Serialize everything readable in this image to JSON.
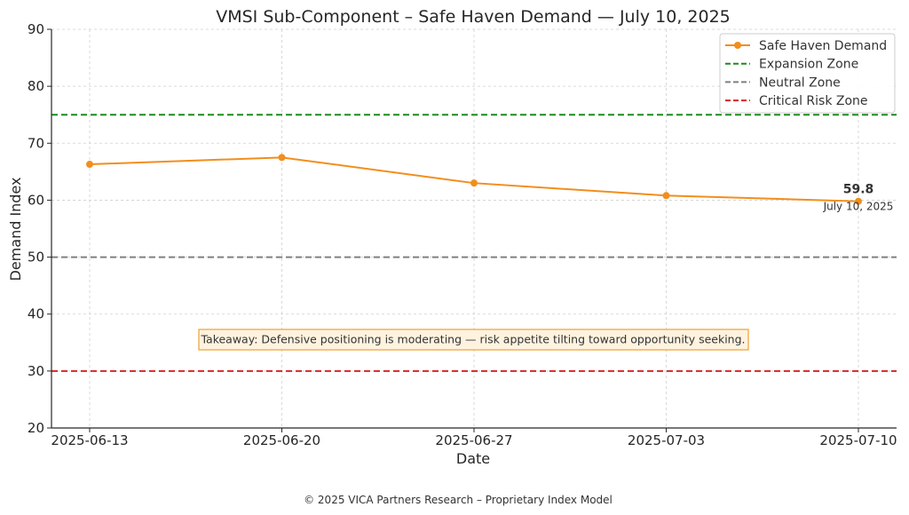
{
  "chart_data": {
    "type": "line",
    "title": "VMSI Sub-Component – Safe Haven Demand — July 10, 2025",
    "xlabel": "Date",
    "ylabel": "Demand Index",
    "categories": [
      "2025-06-13",
      "2025-06-20",
      "2025-06-27",
      "2025-07-03",
      "2025-07-10"
    ],
    "series": [
      {
        "name": "Safe Haven Demand",
        "values": [
          66.3,
          67.5,
          63.0,
          60.8,
          59.8
        ],
        "color": "#f28e1c"
      }
    ],
    "reference_lines": [
      {
        "name": "Expansion Zone",
        "value": 75,
        "color": "#1a8c1a"
      },
      {
        "name": "Neutral Zone",
        "value": 50,
        "color": "#808080"
      },
      {
        "name": "Critical Risk Zone",
        "value": 30,
        "color": "#d62728"
      }
    ],
    "ylim": [
      20,
      90
    ],
    "yticks": [
      20,
      30,
      40,
      50,
      60,
      70,
      80,
      90
    ],
    "grid": true,
    "legend_position": "top-right",
    "last_point_annotation": {
      "value_text": "59.8",
      "date_text": "July 10, 2025"
    },
    "takeaway": "Takeaway: Defensive positioning is moderating — risk appetite tilting toward opportunity seeking.",
    "footer": "© 2025 VICA Partners Research – Proprietary Index Model"
  }
}
